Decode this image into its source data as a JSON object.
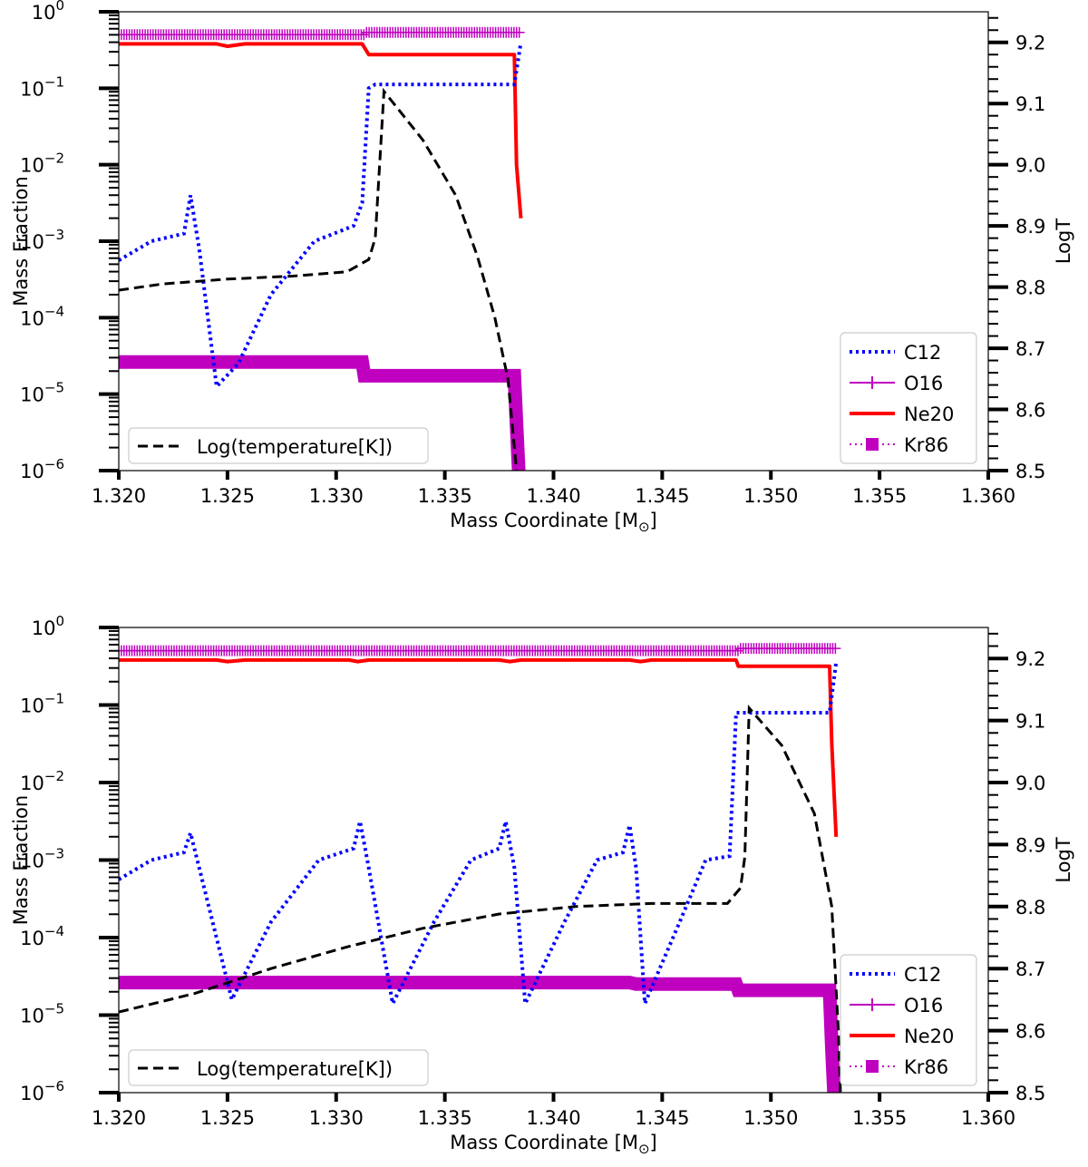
{
  "chart_data": [
    {
      "type": "line",
      "panel": "top",
      "xlabel": "Mass Coordinate [M",
      "xlabel_sub": "⊙",
      "xlabel_close": "]",
      "ylabel": "Mass Fraction",
      "y2label": "LogT",
      "xlim": [
        1.32,
        1.36
      ],
      "ylim_log10": [
        -6,
        0
      ],
      "y2lim": [
        8.5,
        9.25
      ],
      "xticks": [
        "1.320",
        "1.325",
        "1.330",
        "1.335",
        "1.340",
        "1.345",
        "1.350",
        "1.355",
        "1.360"
      ],
      "ytick_base": "10",
      "ytick_exps": [
        "0",
        "−1",
        "−2",
        "−3",
        "−4",
        "−5",
        "−6"
      ],
      "y2ticks": [
        "8.5",
        "8.6",
        "8.7",
        "8.8",
        "8.9",
        "9.0",
        "9.1",
        "9.2"
      ],
      "legend_right": [
        {
          "name": "C12",
          "color": "#0000ff",
          "style": "dotted"
        },
        {
          "name": "O16",
          "color": "#bf00bf",
          "style": "plus"
        },
        {
          "name": "Ne20",
          "color": "#ff0000",
          "style": "solid"
        },
        {
          "name": "Kr86",
          "color": "#bf00bf",
          "style": "square-dotted"
        }
      ],
      "legend_left": {
        "name": "Log(temperature[K])",
        "color": "#000000",
        "style": "dashed"
      },
      "series": [
        {
          "name": "C12",
          "log10_y": [
            [
              1.32,
              -3.25
            ],
            [
              1.3215,
              -3.0
            ],
            [
              1.323,
              -2.9
            ],
            [
              1.3233,
              -2.4
            ],
            [
              1.3237,
              -3.1
            ],
            [
              1.3245,
              -4.9
            ],
            [
              1.3255,
              -4.6
            ],
            [
              1.327,
              -3.7
            ],
            [
              1.329,
              -3.0
            ],
            [
              1.3308,
              -2.8
            ],
            [
              1.3312,
              -2.5
            ],
            [
              1.3315,
              -1.0
            ],
            [
              1.3318,
              -0.95
            ],
            [
              1.3382,
              -0.95
            ],
            [
              1.3385,
              -0.4
            ]
          ]
        },
        {
          "name": "O16",
          "log10_y": [
            [
              1.32,
              -0.3
            ],
            [
              1.3312,
              -0.3
            ],
            [
              1.3313,
              -0.27
            ],
            [
              1.3385,
              -0.27
            ]
          ]
        },
        {
          "name": "Ne20",
          "log10_y": [
            [
              1.32,
              -0.42
            ],
            [
              1.3245,
              -0.42
            ],
            [
              1.325,
              -0.45
            ],
            [
              1.3258,
              -0.42
            ],
            [
              1.3312,
              -0.42
            ],
            [
              1.3315,
              -0.56
            ],
            [
              1.3382,
              -0.56
            ],
            [
              1.3383,
              -2.0
            ],
            [
              1.3385,
              -2.7
            ]
          ]
        },
        {
          "name": "Kr86",
          "log10_y": [
            [
              1.32,
              -4.58
            ],
            [
              1.3312,
              -4.58
            ],
            [
              1.3313,
              -4.76
            ],
            [
              1.3382,
              -4.76
            ],
            [
              1.3383,
              -5.4
            ],
            [
              1.3384,
              -6.0
            ]
          ]
        },
        {
          "name": "Log(temperature[K])",
          "axis": "right",
          "points": [
            [
              1.32,
              8.795
            ],
            [
              1.322,
              8.805
            ],
            [
              1.325,
              8.813
            ],
            [
              1.328,
              8.818
            ],
            [
              1.3305,
              8.825
            ],
            [
              1.3315,
              8.845
            ],
            [
              1.3318,
              8.88
            ],
            [
              1.3322,
              9.12
            ],
            [
              1.334,
              9.04
            ],
            [
              1.3355,
              8.95
            ],
            [
              1.3365,
              8.85
            ],
            [
              1.3373,
              8.75
            ],
            [
              1.3379,
              8.65
            ],
            [
              1.3383,
              8.5
            ]
          ]
        }
      ]
    },
    {
      "type": "line",
      "panel": "bottom",
      "xlabel": "Mass Coordinate [M",
      "xlabel_sub": "⊙",
      "xlabel_close": "]",
      "ylabel": "Mass Fraction",
      "y2label": "LogT",
      "xlim": [
        1.32,
        1.36
      ],
      "ylim_log10": [
        -6,
        0
      ],
      "y2lim": [
        8.5,
        9.25
      ],
      "xticks": [
        "1.320",
        "1.325",
        "1.330",
        "1.335",
        "1.340",
        "1.345",
        "1.350",
        "1.355",
        "1.360"
      ],
      "ytick_base": "10",
      "ytick_exps": [
        "0",
        "−1",
        "−2",
        "−3",
        "−4",
        "−5",
        "−6"
      ],
      "y2ticks": [
        "8.5",
        "8.6",
        "8.7",
        "8.8",
        "8.9",
        "9.0",
        "9.1",
        "9.2"
      ],
      "legend_right": [
        {
          "name": "C12",
          "color": "#0000ff",
          "style": "dotted"
        },
        {
          "name": "O16",
          "color": "#bf00bf",
          "style": "plus"
        },
        {
          "name": "Ne20",
          "color": "#ff0000",
          "style": "solid"
        },
        {
          "name": "Kr86",
          "color": "#bf00bf",
          "style": "square-dotted"
        }
      ],
      "legend_left": {
        "name": "Log(temperature[K])",
        "color": "#000000",
        "style": "dashed"
      },
      "series": [
        {
          "name": "C12",
          "log10_y": [
            [
              1.32,
              -3.25
            ],
            [
              1.3215,
              -3.0
            ],
            [
              1.323,
              -2.9
            ],
            [
              1.3233,
              -2.65
            ],
            [
              1.3237,
              -3.1
            ],
            [
              1.3252,
              -4.8
            ],
            [
              1.327,
              -3.8
            ],
            [
              1.3292,
              -3.0
            ],
            [
              1.3308,
              -2.85
            ],
            [
              1.3311,
              -2.5
            ],
            [
              1.3315,
              -3.1
            ],
            [
              1.3326,
              -4.85
            ],
            [
              1.3345,
              -3.8
            ],
            [
              1.3362,
              -3.0
            ],
            [
              1.3375,
              -2.85
            ],
            [
              1.3378,
              -2.5
            ],
            [
              1.3382,
              -3.1
            ],
            [
              1.3387,
              -4.85
            ],
            [
              1.3405,
              -3.8
            ],
            [
              1.342,
              -3.0
            ],
            [
              1.3432,
              -2.9
            ],
            [
              1.3435,
              -2.55
            ],
            [
              1.3438,
              -3.1
            ],
            [
              1.3442,
              -4.85
            ],
            [
              1.3458,
              -3.8
            ],
            [
              1.347,
              -3.0
            ],
            [
              1.3481,
              -2.95
            ],
            [
              1.3484,
              -1.1
            ],
            [
              1.3492,
              -1.1
            ],
            [
              1.3527,
              -1.1
            ],
            [
              1.353,
              -0.45
            ]
          ]
        },
        {
          "name": "O16",
          "log10_y": [
            [
              1.32,
              -0.3
            ],
            [
              1.3484,
              -0.3
            ],
            [
              1.3485,
              -0.27
            ],
            [
              1.353,
              -0.27
            ]
          ]
        },
        {
          "name": "Ne20",
          "log10_y": [
            [
              1.32,
              -0.42
            ],
            [
              1.3245,
              -0.42
            ],
            [
              1.325,
              -0.44
            ],
            [
              1.3258,
              -0.42
            ],
            [
              1.3306,
              -0.42
            ],
            [
              1.331,
              -0.44
            ],
            [
              1.3315,
              -0.42
            ],
            [
              1.3375,
              -0.42
            ],
            [
              1.338,
              -0.44
            ],
            [
              1.3385,
              -0.42
            ],
            [
              1.3435,
              -0.42
            ],
            [
              1.344,
              -0.44
            ],
            [
              1.3445,
              -0.42
            ],
            [
              1.3484,
              -0.42
            ],
            [
              1.3485,
              -0.5
            ],
            [
              1.3527,
              -0.5
            ],
            [
              1.3528,
              -1.5
            ],
            [
              1.353,
              -2.7
            ]
          ]
        },
        {
          "name": "Kr86",
          "log10_y": [
            [
              1.32,
              -4.58
            ],
            [
              1.3435,
              -4.58
            ],
            [
              1.3438,
              -4.6
            ],
            [
              1.3484,
              -4.6
            ],
            [
              1.3485,
              -4.68
            ],
            [
              1.3527,
              -4.68
            ],
            [
              1.3528,
              -5.4
            ],
            [
              1.3529,
              -6.0
            ]
          ]
        },
        {
          "name": "Log(temperature[K])",
          "axis": "right",
          "points": [
            [
              1.32,
              8.63
            ],
            [
              1.3235,
              8.66
            ],
            [
              1.327,
              8.7
            ],
            [
              1.3305,
              8.735
            ],
            [
              1.334,
              8.765
            ],
            [
              1.3375,
              8.788
            ],
            [
              1.341,
              8.8
            ],
            [
              1.3445,
              8.805
            ],
            [
              1.348,
              8.805
            ],
            [
              1.3486,
              8.83
            ],
            [
              1.3488,
              8.88
            ],
            [
              1.349,
              9.12
            ],
            [
              1.3505,
              9.06
            ],
            [
              1.352,
              8.95
            ],
            [
              1.3528,
              8.8
            ],
            [
              1.3531,
              8.6
            ],
            [
              1.3532,
              8.5
            ]
          ]
        }
      ]
    }
  ]
}
